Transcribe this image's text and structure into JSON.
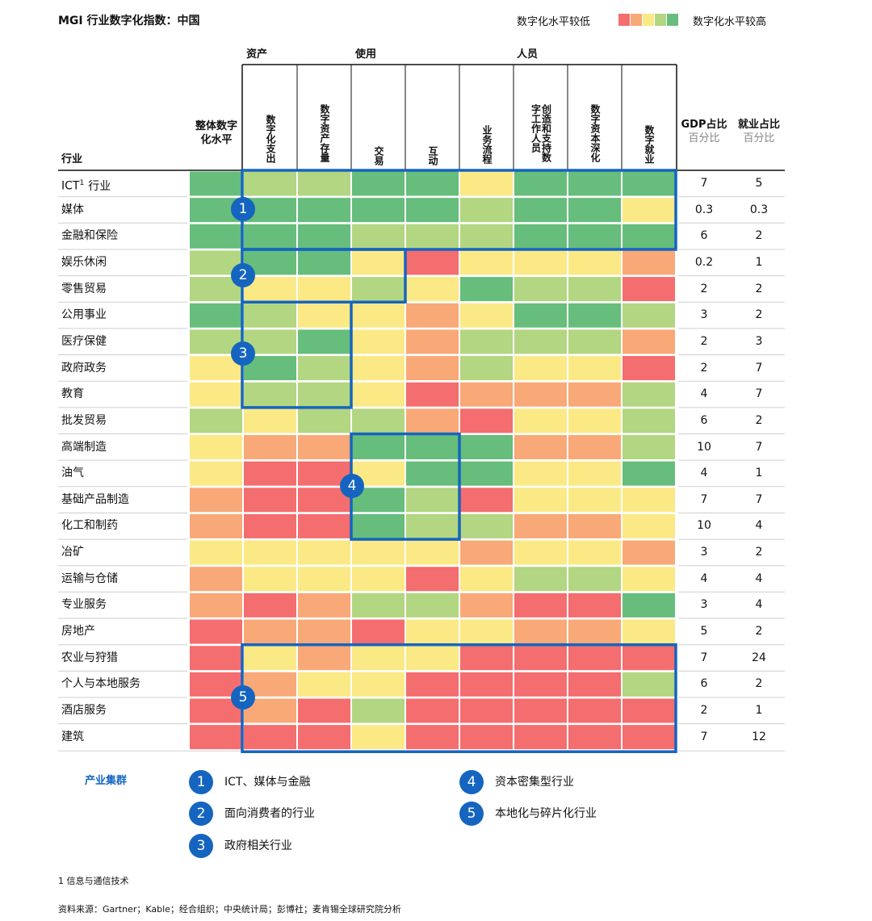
{
  "title": "MGI 行业数字化指数：中国",
  "legend": {
    "low_label": "数字化水平较低",
    "high_label": "数字化水平较高",
    "colors": [
      "#f46d6f",
      "#f9a878",
      "#fbe986",
      "#b2d681",
      "#66bd7c"
    ]
  },
  "groups": [
    "资产",
    "使用",
    "人员"
  ],
  "column_headers": {
    "industry": "行业",
    "overall": "整体数字化水平",
    "metrics": [
      "数字化支出",
      "数字资产存量",
      "交易",
      "互动",
      "业务流程",
      "创造和支持数字工作人员",
      "数字资本深化",
      "数字就业"
    ],
    "gdp": "GDP占比",
    "gdp_sub": "百分比",
    "emp": "就业占比",
    "emp_sub": "百分比"
  },
  "chart_data": {
    "type": "heatmap",
    "title": "MGI 行业数字化指数：中国",
    "scale": [
      "数字化水平较低",
      "数字化水平较高"
    ],
    "level_note": "cell levels 1 (lowest) to 5 (highest)",
    "rows": [
      {
        "name": "ICT",
        "sup": "1",
        "suffix": "行业",
        "levels": [
          5,
          4,
          4,
          5,
          5,
          3,
          5,
          5,
          5
        ],
        "gdp": "7",
        "emp": "5"
      },
      {
        "name": "媒体",
        "sup": "",
        "suffix": "",
        "levels": [
          5,
          5,
          5,
          5,
          5,
          4,
          5,
          5,
          3
        ],
        "gdp": "0.3",
        "emp": "0.3"
      },
      {
        "name": "金融和保险",
        "sup": "",
        "suffix": "",
        "levels": [
          5,
          5,
          5,
          4,
          4,
          4,
          5,
          5,
          5
        ],
        "gdp": "6",
        "emp": "2"
      },
      {
        "name": "娱乐休闲",
        "sup": "",
        "suffix": "",
        "levels": [
          4,
          5,
          5,
          3,
          1,
          3,
          3,
          3,
          2
        ],
        "gdp": "0.2",
        "emp": "1"
      },
      {
        "name": "零售贸易",
        "sup": "",
        "suffix": "",
        "levels": [
          4,
          3,
          3,
          4,
          3,
          5,
          4,
          4,
          1
        ],
        "gdp": "2",
        "emp": "2"
      },
      {
        "name": "公用事业",
        "sup": "",
        "suffix": "",
        "levels": [
          5,
          4,
          3,
          3,
          2,
          3,
          5,
          5,
          4
        ],
        "gdp": "3",
        "emp": "2"
      },
      {
        "name": "医疗保健",
        "sup": "",
        "suffix": "",
        "levels": [
          4,
          4,
          5,
          3,
          2,
          4,
          4,
          4,
          2
        ],
        "gdp": "2",
        "emp": "3"
      },
      {
        "name": "政府政务",
        "sup": "",
        "suffix": "",
        "levels": [
          3,
          5,
          4,
          3,
          2,
          4,
          3,
          3,
          1
        ],
        "gdp": "2",
        "emp": "7"
      },
      {
        "name": "教育",
        "sup": "",
        "suffix": "",
        "levels": [
          3,
          4,
          4,
          3,
          1,
          2,
          2,
          2,
          4
        ],
        "gdp": "4",
        "emp": "7"
      },
      {
        "name": "批发贸易",
        "sup": "",
        "suffix": "",
        "levels": [
          4,
          3,
          4,
          4,
          2,
          1,
          3,
          3,
          4
        ],
        "gdp": "6",
        "emp": "2"
      },
      {
        "name": "高端制造",
        "sup": "",
        "suffix": "",
        "levels": [
          3,
          2,
          2,
          5,
          5,
          5,
          2,
          2,
          4
        ],
        "gdp": "10",
        "emp": "7"
      },
      {
        "name": "油气",
        "sup": "",
        "suffix": "",
        "levels": [
          3,
          1,
          1,
          3,
          5,
          5,
          3,
          3,
          5
        ],
        "gdp": "4",
        "emp": "1"
      },
      {
        "name": "基础产品制造",
        "sup": "",
        "suffix": "",
        "levels": [
          2,
          1,
          1,
          5,
          4,
          1,
          3,
          3,
          3
        ],
        "gdp": "7",
        "emp": "7"
      },
      {
        "name": "化工和制药",
        "sup": "",
        "suffix": "",
        "levels": [
          2,
          1,
          1,
          5,
          4,
          4,
          2,
          2,
          3
        ],
        "gdp": "10",
        "emp": "4"
      },
      {
        "name": "冶矿",
        "sup": "",
        "suffix": "",
        "levels": [
          3,
          3,
          3,
          3,
          3,
          2,
          3,
          3,
          2
        ],
        "gdp": "3",
        "emp": "2"
      },
      {
        "name": "运输与仓储",
        "sup": "",
        "suffix": "",
        "levels": [
          2,
          3,
          3,
          3,
          1,
          3,
          4,
          4,
          3
        ],
        "gdp": "4",
        "emp": "4"
      },
      {
        "name": "专业服务",
        "sup": "",
        "suffix": "",
        "levels": [
          2,
          1,
          2,
          4,
          4,
          2,
          1,
          1,
          5
        ],
        "gdp": "3",
        "emp": "4"
      },
      {
        "name": "房地产",
        "sup": "",
        "suffix": "",
        "levels": [
          1,
          2,
          2,
          1,
          3,
          3,
          2,
          2,
          3
        ],
        "gdp": "5",
        "emp": "2"
      },
      {
        "name": "农业与狩猎",
        "sup": "",
        "suffix": "",
        "levels": [
          1,
          3,
          2,
          3,
          3,
          1,
          1,
          1,
          1
        ],
        "gdp": "7",
        "emp": "24"
      },
      {
        "name": "个人与本地服务",
        "sup": "",
        "suffix": "",
        "levels": [
          1,
          2,
          3,
          3,
          1,
          1,
          1,
          1,
          4
        ],
        "gdp": "6",
        "emp": "2"
      },
      {
        "name": "酒店服务",
        "sup": "",
        "suffix": "",
        "levels": [
          1,
          2,
          1,
          4,
          1,
          1,
          1,
          1,
          1
        ],
        "gdp": "2",
        "emp": "1"
      },
      {
        "name": "建筑",
        "sup": "",
        "suffix": "",
        "levels": [
          1,
          1,
          1,
          3,
          1,
          1,
          1,
          1,
          1
        ],
        "gdp": "7",
        "emp": "12"
      }
    ]
  },
  "clusters": {
    "title": "产业集群",
    "items": [
      {
        "number": "1",
        "label": "ICT、媒体与金融"
      },
      {
        "number": "2",
        "label": "面向消费者的行业"
      },
      {
        "number": "3",
        "label": "政府相关行业"
      },
      {
        "number": "4",
        "label": "资本密集型行业"
      },
      {
        "number": "5",
        "label": "本地化与碎片化行业"
      }
    ]
  },
  "footnote": "1  信息与通信技术",
  "source": "资料来源：Gartner；Kable；经合组织；中央统计局；彭博社；麦肯锡全球研究院分析"
}
